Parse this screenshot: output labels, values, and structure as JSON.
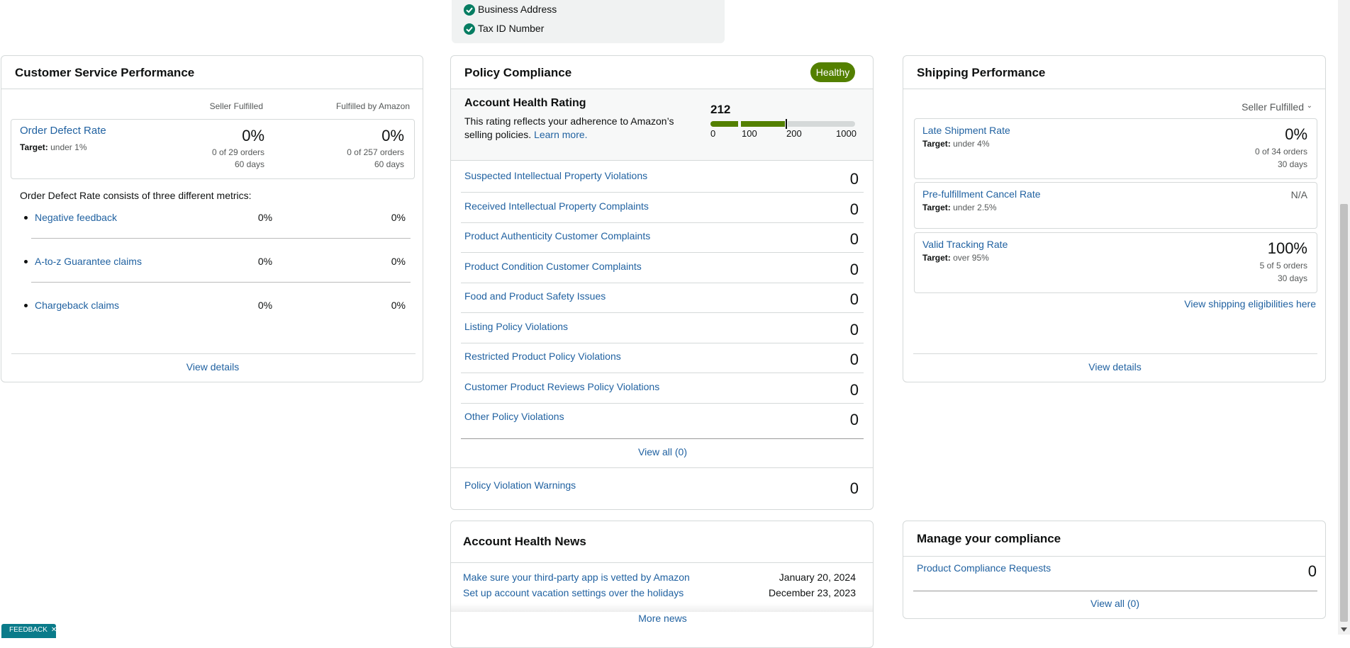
{
  "verification": {
    "items": [
      "Business Address",
      "Tax ID Number"
    ]
  },
  "customer_service": {
    "title": "Customer Service Performance",
    "columns": [
      "Seller Fulfilled",
      "Fulfilled by Amazon"
    ],
    "odr": {
      "label": "Order Defect Rate",
      "target_label": "Target:",
      "target": "under 1%",
      "seller": {
        "value": "0%",
        "orders": "0 of 29 orders",
        "days": "60 days"
      },
      "fba": {
        "value": "0%",
        "orders": "0 of 257 orders",
        "days": "60 days"
      }
    },
    "intro": "Order Defect Rate consists of three different metrics:",
    "metrics": [
      {
        "name": "Negative feedback",
        "seller": "0%",
        "fba": "0%"
      },
      {
        "name": "A-to-z Guarantee claims",
        "seller": "0%",
        "fba": "0%"
      },
      {
        "name": "Chargeback claims",
        "seller": "0%",
        "fba": "0%"
      }
    ],
    "link": "View details"
  },
  "policy": {
    "title": "Policy Compliance",
    "badge": "Healthy",
    "ahr_title": "Account Health Rating",
    "ahr_text": "This rating reflects your adherence to Amazon’s selling policies.",
    "learn_more": "Learn more.",
    "score": "212",
    "scale": [
      "0",
      "100",
      "200",
      "1000"
    ],
    "rows": [
      {
        "label": "Suspected Intellectual Property Violations",
        "count": "0"
      },
      {
        "label": "Received Intellectual Property Complaints",
        "count": "0"
      },
      {
        "label": "Product Authenticity Customer Complaints",
        "count": "0"
      },
      {
        "label": "Product Condition Customer Complaints",
        "count": "0"
      },
      {
        "label": "Food and Product Safety Issues",
        "count": "0"
      },
      {
        "label": "Listing Policy Violations",
        "count": "0"
      },
      {
        "label": "Restricted Product Policy Violations",
        "count": "0"
      },
      {
        "label": "Customer Product Reviews Policy Violations",
        "count": "0"
      },
      {
        "label": "Other Policy Violations",
        "count": "0"
      }
    ],
    "view_all": "View all (0)",
    "warnings": {
      "label": "Policy Violation Warnings",
      "count": "0"
    }
  },
  "news": {
    "title": "Account Health News",
    "items": [
      {
        "text": "Make sure your third-party app is vetted by Amazon",
        "date": "January 20, 2024"
      },
      {
        "text": "Set up account vacation settings over the holidays",
        "date": "December 23, 2023"
      }
    ],
    "more": "More news"
  },
  "shipping": {
    "title": "Shipping Performance",
    "filter": "Seller Fulfilled",
    "metrics": [
      {
        "label": "Late Shipment Rate",
        "target_label": "Target:",
        "target": "under 4%",
        "value": "0%",
        "orders": "0 of 34 orders",
        "days": "30 days"
      },
      {
        "label": "Pre-fulfillment Cancel Rate",
        "target_label": "Target:",
        "target": "under 2.5%",
        "value": "N/A"
      },
      {
        "label": "Valid Tracking Rate",
        "target_label": "Target:",
        "target": "over 95%",
        "value": "100%",
        "orders": "5 of 5 orders",
        "days": "30 days"
      }
    ],
    "eligibility": "View shipping eligibilities here",
    "link": "View details"
  },
  "compliance": {
    "title": "Manage your compliance",
    "row": {
      "label": "Product Compliance Requests",
      "count": "0"
    },
    "view_all": "View all (0)"
  },
  "feedback": "FEEDBACK"
}
